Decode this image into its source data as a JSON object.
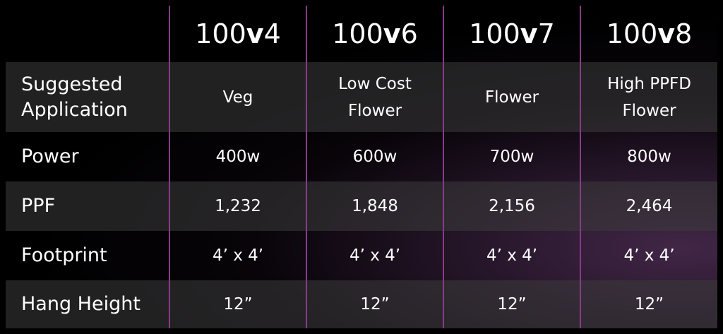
{
  "table": {
    "header": [
      "100v4",
      "100v6",
      "100v7",
      "100v8"
    ],
    "rows": [
      [
        "Suggested Application",
        "Veg",
        "Low Cost Flower",
        "Flower",
        "High PPFD Flower"
      ],
      [
        "Power",
        "400w",
        "600w",
        "700w",
        "800w"
      ],
      [
        "PPF",
        "1,232",
        "1,848",
        "2,156",
        "2,464"
      ],
      [
        "Footprint",
        "4’ x 4’",
        "4’ x 4’",
        "4’ x 4’",
        "4’ x 4’"
      ],
      [
        "Hang Height",
        "12”",
        "12”",
        "12”",
        "12”"
      ]
    ]
  }
}
